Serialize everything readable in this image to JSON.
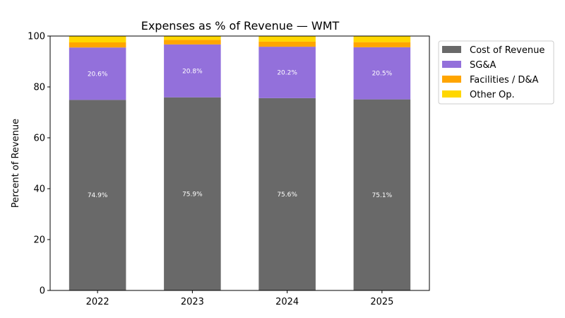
{
  "chart_data": {
    "type": "bar",
    "stacked": true,
    "title": "Expenses as % of Revenue — WMT",
    "xlabel": "",
    "ylabel": "Percent of Revenue",
    "ylim": [
      0,
      100
    ],
    "yticks": [
      0,
      20,
      40,
      60,
      80,
      100
    ],
    "categories": [
      "2022",
      "2023",
      "2024",
      "2025"
    ],
    "series": [
      {
        "name": "Cost of Revenue",
        "color": "#696969",
        "values": [
          74.9,
          75.9,
          75.6,
          75.1
        ],
        "labels": [
          "74.9%",
          "75.9%",
          "75.6%",
          "75.1%"
        ]
      },
      {
        "name": "SG&A",
        "color": "#9370db",
        "values": [
          20.6,
          20.8,
          20.2,
          20.5
        ],
        "labels": [
          "20.6%",
          "20.8%",
          "20.2%",
          "20.5%"
        ]
      },
      {
        "name": "Facilities / D&A",
        "color": "#ffa500",
        "values": [
          2.0,
          1.8,
          2.0,
          2.0
        ]
      },
      {
        "name": "Other Op.",
        "color": "#ffd700",
        "values": [
          2.5,
          1.5,
          2.2,
          2.4
        ]
      }
    ],
    "legend": "outside-top-right",
    "grid": false
  }
}
